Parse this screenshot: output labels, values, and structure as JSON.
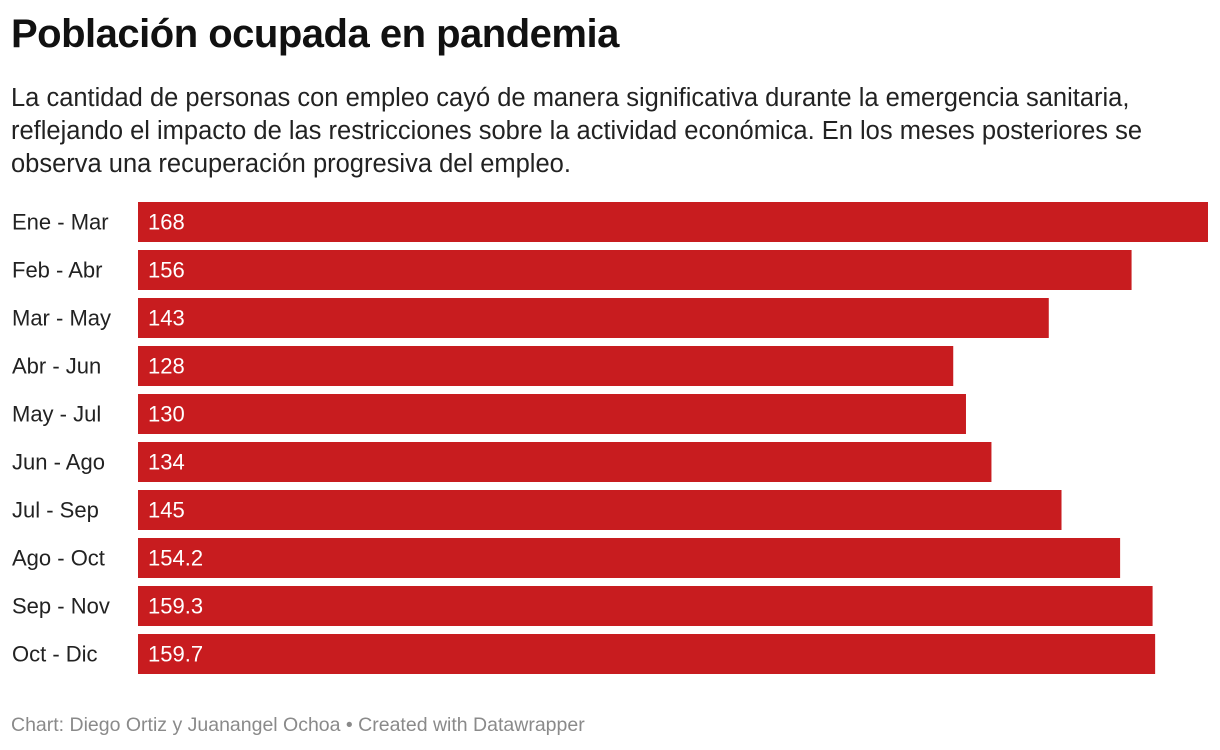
{
  "header": {
    "title": "Población ocupada en pandemia",
    "subtitle": "La cantidad de personas con empleo cayó de manera significativa durante la emergencia sanitaria, reflejando el impacto de las restricciones sobre la actividad económica. En los meses posteriores se observa una recuperación progresiva del empleo."
  },
  "footer": {
    "credit": "Chart: Diego Ortiz y Juanangel Ochoa • Created with Datawrapper"
  },
  "chart_data": {
    "type": "bar",
    "orientation": "horizontal",
    "title": "Población ocupada en pandemia",
    "categories": [
      "Ene - Mar",
      "Feb - Abr",
      "Mar - May",
      "Abr - Jun",
      "May - Jul",
      "Jun - Ago",
      "Jul - Sep",
      "Ago - Oct",
      "Sep - Nov",
      "Oct - Dic"
    ],
    "values": [
      168,
      156,
      143,
      128,
      130,
      134,
      145,
      154.2,
      159.3,
      159.7
    ],
    "value_labels": [
      "168",
      "156",
      "143",
      "128",
      "130",
      "134",
      "145",
      "154.2",
      "159.3",
      "159.7"
    ],
    "xlim": [
      0,
      168
    ],
    "grid": false,
    "color": "#c81c1f"
  }
}
